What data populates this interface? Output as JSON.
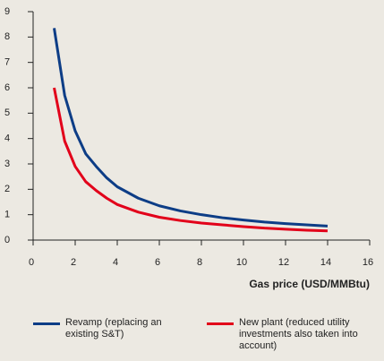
{
  "chart_data": {
    "type": "line",
    "x": [
      1,
      1.5,
      2,
      2.5,
      3,
      3.5,
      4,
      5,
      6,
      7,
      8,
      9,
      10,
      11,
      12,
      13,
      14
    ],
    "series": [
      {
        "name": "Revamp (replacing an existing S&T)",
        "color": "#0d3d86",
        "values": [
          8.35,
          5.7,
          4.3,
          3.4,
          2.9,
          2.45,
          2.1,
          1.65,
          1.35,
          1.15,
          1.0,
          0.88,
          0.79,
          0.71,
          0.65,
          0.6,
          0.55
        ]
      },
      {
        "name": "New plant (reduced utility investments also taken into account)",
        "color": "#e2001a",
        "values": [
          6.0,
          3.9,
          2.9,
          2.3,
          1.95,
          1.65,
          1.4,
          1.1,
          0.9,
          0.77,
          0.67,
          0.6,
          0.53,
          0.47,
          0.43,
          0.39,
          0.36
        ]
      }
    ],
    "xlabel": "Gas price (USD/MMBtu)",
    "xlim": [
      0,
      16
    ],
    "xticks": [
      0,
      2,
      4,
      6,
      8,
      10,
      12,
      14,
      16
    ],
    "ylim": [
      0,
      9
    ],
    "yticks": [
      0,
      1,
      2,
      3,
      4,
      5,
      6,
      7,
      8,
      9
    ],
    "grid": false,
    "legend": "bottom"
  }
}
